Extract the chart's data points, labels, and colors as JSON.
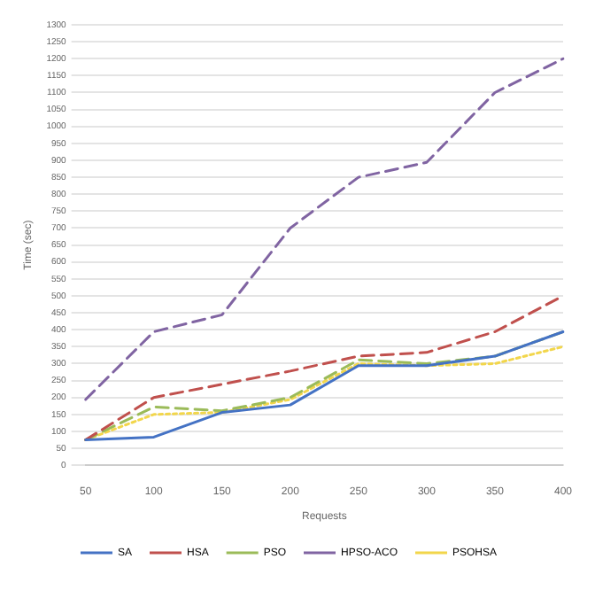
{
  "chart_data": {
    "type": "line",
    "xlabel": "Requests",
    "ylabel": "Time (sec)",
    "categories": [
      "50",
      "100",
      "150",
      "200",
      "250",
      "300",
      "350",
      "400"
    ],
    "ylim": [
      0,
      1300
    ],
    "yticks": [
      0,
      50,
      100,
      150,
      200,
      250,
      300,
      350,
      400,
      450,
      500,
      550,
      600,
      650,
      700,
      750,
      800,
      850,
      900,
      950,
      1000,
      1050,
      1100,
      1150,
      1200,
      1250,
      1300
    ],
    "grid": "y",
    "legend": "bottom",
    "marker": "none",
    "series": [
      {
        "name": "SA",
        "color": "#4472c4",
        "line_style": "solid",
        "values": [
          75,
          83,
          156,
          178,
          294,
          294,
          322,
          394
        ]
      },
      {
        "name": "HSA",
        "color": "#c0504d",
        "line_style": "dashed",
        "values": [
          75,
          200,
          239,
          278,
          322,
          333,
          394,
          500
        ]
      },
      {
        "name": "PSO",
        "color": "#9bbb59",
        "line_style": "dashed",
        "values": [
          75,
          172,
          161,
          200,
          311,
          300,
          322,
          394
        ]
      },
      {
        "name": "HPSO-ACO",
        "color": "#8064a2",
        "line_style": "dashed",
        "values": [
          194,
          394,
          444,
          700,
          850,
          894,
          1100,
          1200
        ]
      },
      {
        "name": "PSOHSA",
        "color": "#f2d64b",
        "line_style": "dotted",
        "values": [
          75,
          150,
          156,
          194,
          300,
          294,
          300,
          350
        ]
      }
    ]
  }
}
